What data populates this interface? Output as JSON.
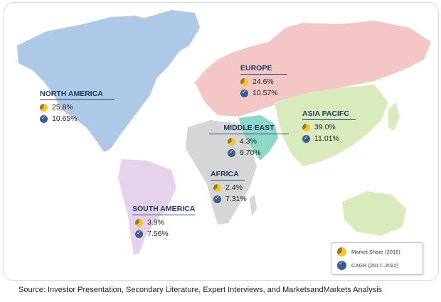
{
  "regions": {
    "north_america": {
      "name": "NORTH AMERICA",
      "share": "25.8%",
      "cagr": "10.65%",
      "color": "#aec9e8"
    },
    "europe": {
      "name": "EUROPE",
      "share": "24.6%",
      "cagr": "10.57%",
      "color": "#f4c6c6"
    },
    "asia_pacific": {
      "name": "ASIA PACIFC",
      "share": "39.0%",
      "cagr": "11.01%",
      "color": "#d9ebbd"
    },
    "middle_east": {
      "name": "MIDDLE EAST",
      "share": "4.3%",
      "cagr": "9.70%",
      "color": "#8fd7c7"
    },
    "africa": {
      "name": "AFRICA",
      "share": "2.4%",
      "cagr": "7.31%",
      "color": "#d6d6d6"
    },
    "south_america": {
      "name": "SOUTH AMERICA",
      "share": "3.9%",
      "cagr": "7.56%",
      "color": "#e6d3eb"
    }
  },
  "legend": {
    "market_share": "Market Share (2016)",
    "cagr": "CAGR (2017–2022)"
  },
  "source": "Source: Investor Presentation, Secondary Literature, Expert Interviews, and MarketsandMarkets Analysis",
  "colors": {
    "label_text": "#1f3864",
    "share_icon": "#f6c42a",
    "cagr_icon": "#3b5d8f"
  }
}
